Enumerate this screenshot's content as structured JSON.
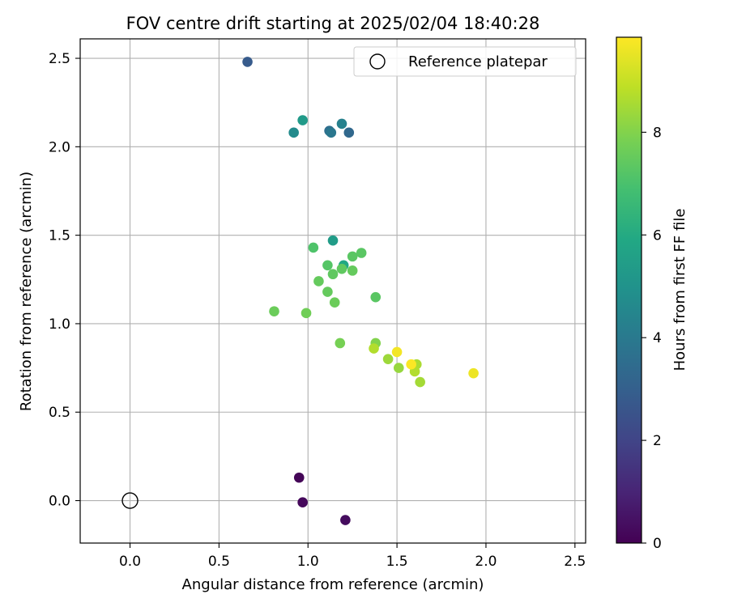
{
  "chart_data": {
    "type": "scatter",
    "title": "FOV centre drift starting at 2025/02/04 18:40:28",
    "xlabel": "Angular distance from reference (arcmin)",
    "ylabel": "Rotation from reference (arcmin)",
    "xlim": [
      -0.28,
      2.56
    ],
    "ylim": [
      -0.24,
      2.61
    ],
    "xticks": [
      "0.0",
      "0.5",
      "1.0",
      "1.5",
      "2.0",
      "2.5"
    ],
    "yticks": [
      "0.0",
      "0.5",
      "1.0",
      "1.5",
      "2.0",
      "2.5"
    ],
    "grid": true,
    "legend": {
      "position": "top-right",
      "label": "Reference platepar"
    },
    "reference_point": {
      "x": 0.0,
      "y": 0.0
    },
    "colorbar": {
      "label": "Hours from first FF file",
      "min": 0,
      "max": 9.85,
      "ticks": [
        "0",
        "2",
        "4",
        "6",
        "8"
      ],
      "colormap": "viridis"
    },
    "points": [
      {
        "x": 0.95,
        "y": 0.13,
        "hours": 0.1
      },
      {
        "x": 0.97,
        "y": -0.01,
        "hours": 0.2
      },
      {
        "x": 1.21,
        "y": -0.11,
        "hours": 0.3
      },
      {
        "x": 0.66,
        "y": 2.48,
        "hours": 2.8
      },
      {
        "x": 1.23,
        "y": 2.08,
        "hours": 3.3
      },
      {
        "x": 1.12,
        "y": 2.09,
        "hours": 3.6
      },
      {
        "x": 1.13,
        "y": 2.08,
        "hours": 3.9
      },
      {
        "x": 1.19,
        "y": 2.13,
        "hours": 4.3
      },
      {
        "x": 0.92,
        "y": 2.08,
        "hours": 4.7
      },
      {
        "x": 0.97,
        "y": 2.15,
        "hours": 5.3
      },
      {
        "x": 1.14,
        "y": 1.47,
        "hours": 5.4
      },
      {
        "x": 1.2,
        "y": 1.33,
        "hours": 5.9
      },
      {
        "x": 1.03,
        "y": 1.43,
        "hours": 7.1
      },
      {
        "x": 1.11,
        "y": 1.33,
        "hours": 7.2
      },
      {
        "x": 1.25,
        "y": 1.38,
        "hours": 7.3
      },
      {
        "x": 1.3,
        "y": 1.4,
        "hours": 7.3
      },
      {
        "x": 1.14,
        "y": 1.28,
        "hours": 7.4
      },
      {
        "x": 1.19,
        "y": 1.31,
        "hours": 7.4
      },
      {
        "x": 1.25,
        "y": 1.3,
        "hours": 7.5
      },
      {
        "x": 1.06,
        "y": 1.24,
        "hours": 7.5
      },
      {
        "x": 1.11,
        "y": 1.18,
        "hours": 7.5
      },
      {
        "x": 1.38,
        "y": 1.15,
        "hours": 7.3
      },
      {
        "x": 1.15,
        "y": 1.12,
        "hours": 7.6
      },
      {
        "x": 0.81,
        "y": 1.07,
        "hours": 7.6
      },
      {
        "x": 0.99,
        "y": 1.06,
        "hours": 7.7
      },
      {
        "x": 1.18,
        "y": 0.89,
        "hours": 7.8
      },
      {
        "x": 1.38,
        "y": 0.89,
        "hours": 8.0
      },
      {
        "x": 1.37,
        "y": 0.86,
        "hours": 8.7
      },
      {
        "x": 1.45,
        "y": 0.8,
        "hours": 8.4
      },
      {
        "x": 1.51,
        "y": 0.75,
        "hours": 8.3
      },
      {
        "x": 1.61,
        "y": 0.77,
        "hours": 8.6
      },
      {
        "x": 1.6,
        "y": 0.73,
        "hours": 8.7
      },
      {
        "x": 1.63,
        "y": 0.67,
        "hours": 8.5
      },
      {
        "x": 1.58,
        "y": 0.77,
        "hours": 9.8
      },
      {
        "x": 1.5,
        "y": 0.84,
        "hours": 9.7
      },
      {
        "x": 1.93,
        "y": 0.72,
        "hours": 9.6
      }
    ]
  }
}
